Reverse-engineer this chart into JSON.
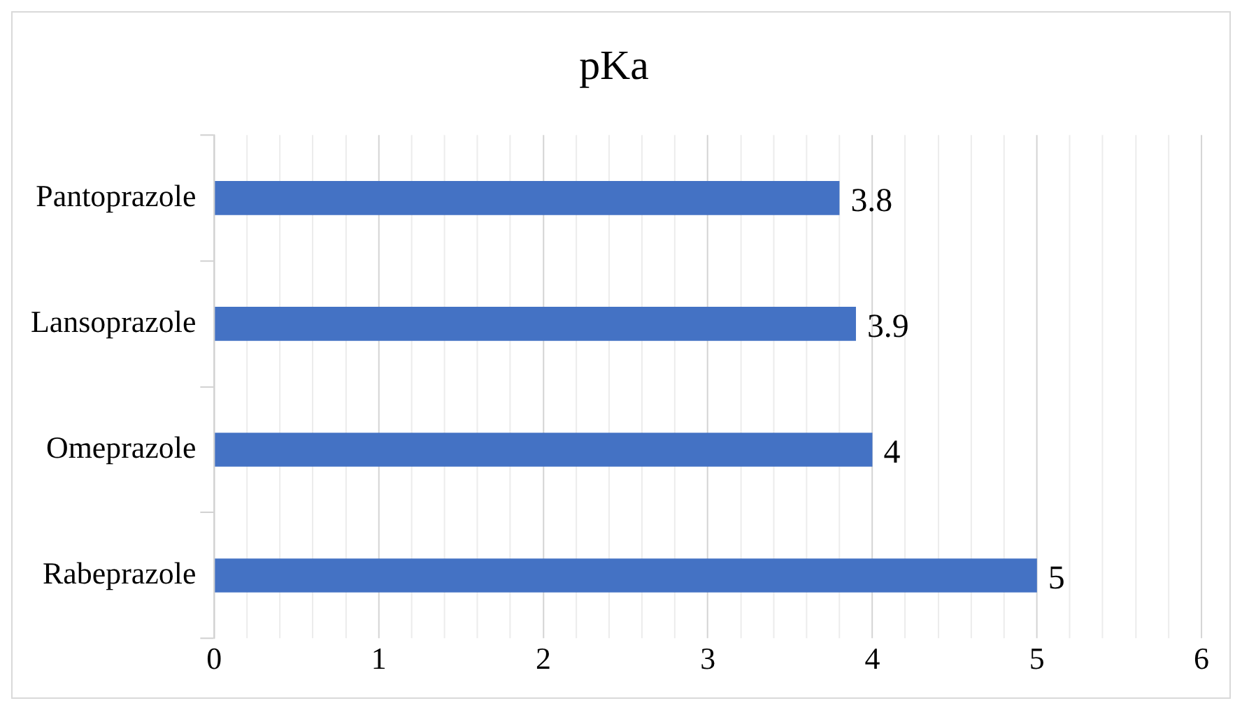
{
  "chart_data": {
    "type": "bar",
    "orientation": "horizontal",
    "title": "pKa",
    "categories": [
      "Pantoprazole",
      "Lansoprazole",
      "Omeprazole",
      "Rabeprazole"
    ],
    "values": [
      3.8,
      3.9,
      4,
      5
    ],
    "color": "#4472c4",
    "xlim": [
      0,
      6
    ],
    "xticks": [
      0,
      {
        "value": 0.2,
        "label": null
      },
      {
        "value": 0.4,
        "label": null
      },
      {
        "value": 0.6,
        "label": null
      },
      {
        "value": 0.8,
        "label": null
      },
      1,
      {
        "value": 1.2,
        "label": null
      },
      {
        "value": 1.4,
        "label": null
      },
      {
        "value": 1.6,
        "label": null
      },
      {
        "value": 1.8,
        "label": null
      },
      2,
      {
        "value": 2.2,
        "label": null
      },
      {
        "value": 2.4,
        "label": null
      },
      {
        "value": 2.6,
        "label": null
      },
      {
        "value": 2.8,
        "label": null
      },
      3,
      {
        "value": 3.2,
        "label": null
      },
      {
        "value": 3.4,
        "label": null
      },
      {
        "value": 3.6,
        "label": null
      },
      {
        "value": 3.8,
        "label": null
      },
      4,
      {
        "value": 4.2,
        "label": null
      },
      {
        "value": 4.4,
        "label": null
      },
      {
        "value": 4.6,
        "label": null
      },
      {
        "value": 4.8,
        "label": null
      },
      5,
      {
        "value": 5.2,
        "label": null
      },
      {
        "value": 5.4,
        "label": null
      },
      {
        "value": 5.6,
        "label": null
      },
      {
        "value": 5.8,
        "label": null
      },
      6
    ],
    "grid": "x",
    "data_labels": true
  }
}
